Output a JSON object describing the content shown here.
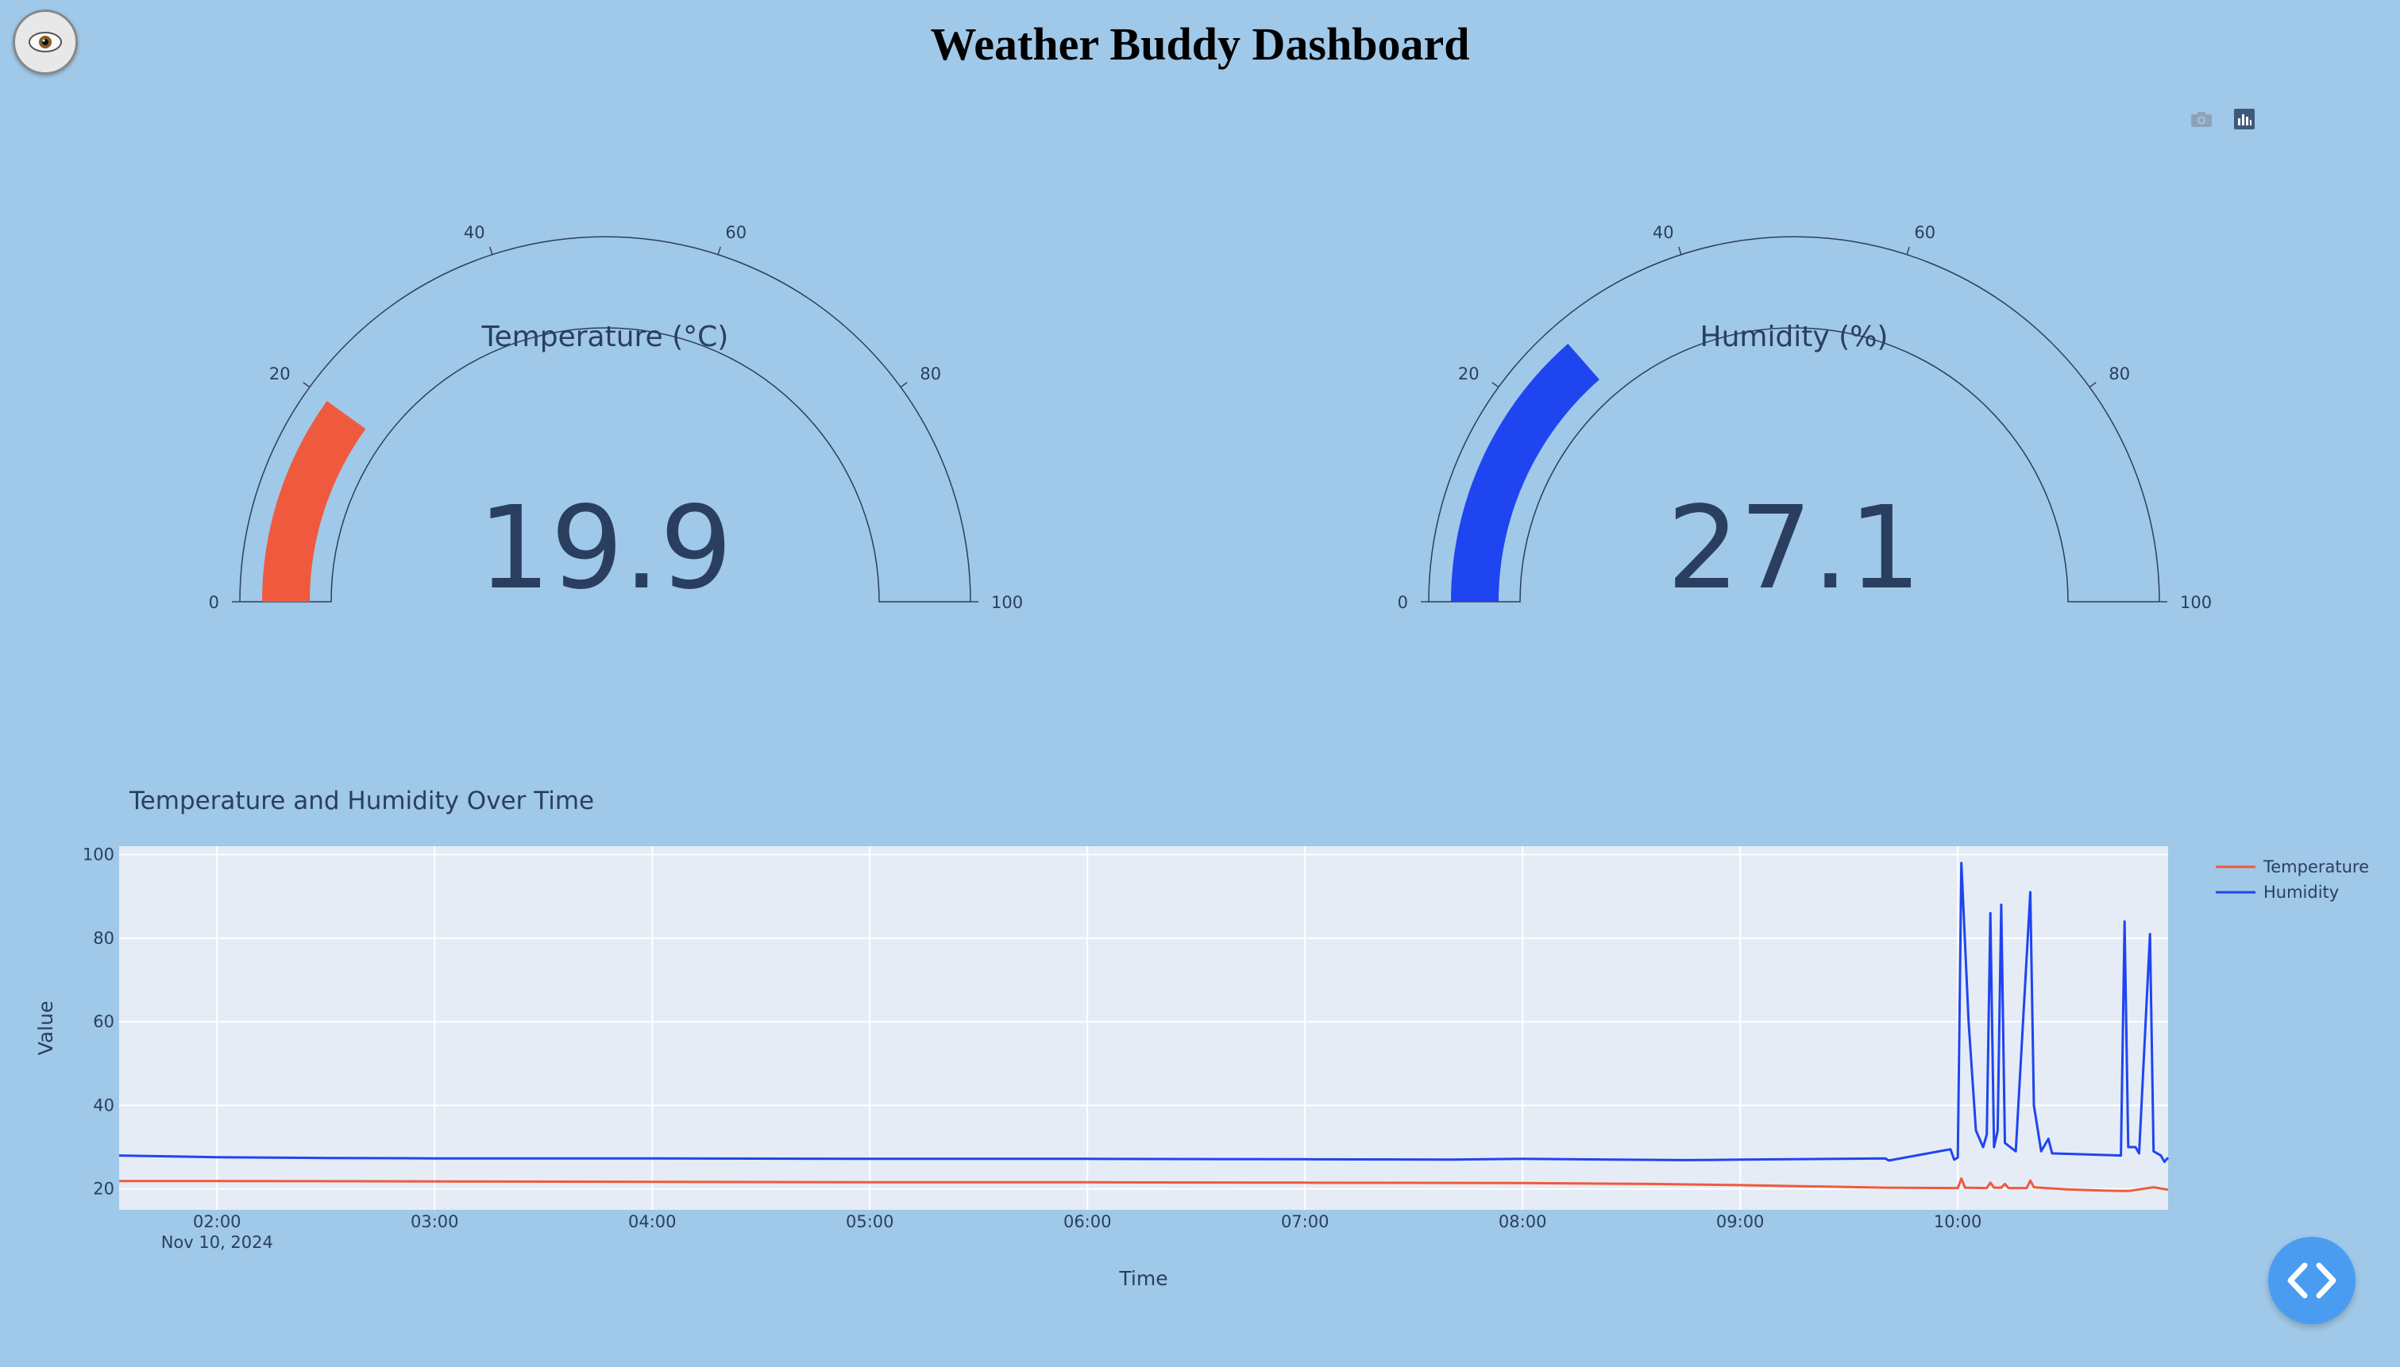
{
  "page": {
    "title": "Weather Buddy Dashboard",
    "avatar_icon": "eye-icon",
    "toolbar": {
      "camera_icon": "camera-icon",
      "chart_icon": "bar-chart-icon"
    },
    "code_button_icon": "code-brackets-icon"
  },
  "chart_data": [
    {
      "type": "gauge",
      "title": "Temperature (°C)",
      "value": "19.9",
      "numeric_value": 19.9,
      "range": [
        0,
        100
      ],
      "ticks": [
        "0",
        "20",
        "40",
        "60",
        "80",
        "100"
      ],
      "bar_color": "#ef5a3e"
    },
    {
      "type": "gauge",
      "title": "Humidity (%)",
      "value": "27.1",
      "numeric_value": 27.1,
      "range": [
        0,
        100
      ],
      "ticks": [
        "0",
        "20",
        "40",
        "60",
        "80",
        "100"
      ],
      "bar_color": "#1f45f0"
    },
    {
      "type": "line",
      "title": "Temperature and Humidity Over Time",
      "xlabel": "Time",
      "ylabel": "Value",
      "x_start_label": "Nov 10, 2024",
      "xlim": [
        "01:33",
        "10:58"
      ],
      "ylim": [
        15,
        102
      ],
      "grid": true,
      "legend_position": "top-right",
      "x_ticks": [
        "02:00",
        "03:00",
        "04:00",
        "05:00",
        "06:00",
        "07:00",
        "08:00",
        "09:00",
        "10:00"
      ],
      "y_ticks": [
        "20",
        "40",
        "60",
        "80",
        "100"
      ],
      "series": [
        {
          "name": "Temperature",
          "color": "#ef5a3e",
          "points": [
            [
              "01:33",
              21.9
            ],
            [
              "02:00",
              21.9
            ],
            [
              "03:00",
              21.8
            ],
            [
              "04:00",
              21.7
            ],
            [
              "05:00",
              21.6
            ],
            [
              "06:00",
              21.6
            ],
            [
              "07:00",
              21.5
            ],
            [
              "08:00",
              21.4
            ],
            [
              "08:35",
              21.2
            ],
            [
              "09:00",
              20.9
            ],
            [
              "09:40",
              20.3
            ],
            [
              "10:00",
              20.2
            ],
            [
              "10:01",
              22.5
            ],
            [
              "10:02",
              20.3
            ],
            [
              "10:08",
              20.2
            ],
            [
              "10:09",
              21.5
            ],
            [
              "10:10",
              20.3
            ],
            [
              "10:12",
              20.3
            ],
            [
              "10:13",
              21.2
            ],
            [
              "10:14",
              20.2
            ],
            [
              "10:19",
              20.2
            ],
            [
              "10:20",
              22.0
            ],
            [
              "10:21",
              20.4
            ],
            [
              "10:30",
              19.9
            ],
            [
              "10:40",
              19.6
            ],
            [
              "10:47",
              19.5
            ],
            [
              "10:54",
              20.4
            ],
            [
              "10:58",
              19.8
            ]
          ]
        },
        {
          "name": "Humidity",
          "color": "#1f45f0",
          "points": [
            [
              "01:33",
              28.0
            ],
            [
              "02:00",
              27.6
            ],
            [
              "02:30",
              27.4
            ],
            [
              "03:00",
              27.3
            ],
            [
              "04:00",
              27.3
            ],
            [
              "05:00",
              27.2
            ],
            [
              "06:00",
              27.2
            ],
            [
              "07:00",
              27.1
            ],
            [
              "07:40",
              27.0
            ],
            [
              "08:00",
              27.2
            ],
            [
              "08:45",
              26.9
            ],
            [
              "09:00",
              27.0
            ],
            [
              "09:40",
              27.3
            ],
            [
              "09:41",
              26.8
            ],
            [
              "09:58",
              29.5
            ],
            [
              "09:59",
              27.0
            ],
            [
              "10:00",
              27.5
            ],
            [
              "10:01",
              98.0
            ],
            [
              "10:03",
              60.0
            ],
            [
              "10:05",
              34.0
            ],
            [
              "10:07",
              30.0
            ],
            [
              "10:08",
              33.0
            ],
            [
              "10:09",
              86.0
            ],
            [
              "10:10",
              30.0
            ],
            [
              "10:11",
              34.0
            ],
            [
              "10:12",
              88.0
            ],
            [
              "10:13",
              31.0
            ],
            [
              "10:16",
              29.0
            ],
            [
              "10:20",
              91.0
            ],
            [
              "10:21",
              40.0
            ],
            [
              "10:23",
              29.0
            ],
            [
              "10:25",
              32.0
            ],
            [
              "10:26",
              28.5
            ],
            [
              "10:45",
              28.0
            ],
            [
              "10:46",
              84.0
            ],
            [
              "10:47",
              30.0
            ],
            [
              "10:49",
              30.0
            ],
            [
              "10:50",
              28.5
            ],
            [
              "10:53",
              81.0
            ],
            [
              "10:54",
              29.0
            ],
            [
              "10:56",
              28.0
            ],
            [
              "10:57",
              26.5
            ],
            [
              "10:58",
              27.5
            ]
          ]
        }
      ]
    }
  ]
}
